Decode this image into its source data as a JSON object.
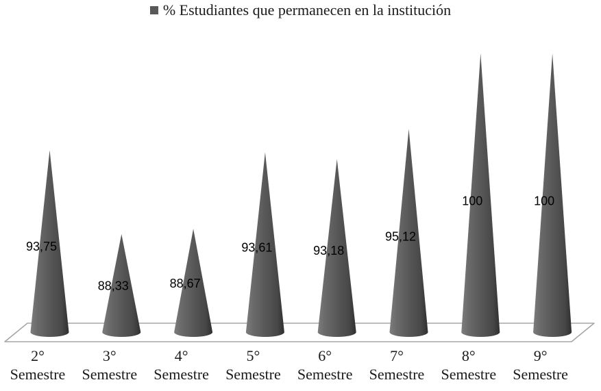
{
  "legend": {
    "marker_color": "#595959",
    "label": "% Estudiantes que permanecen en la institución"
  },
  "chart_data": {
    "type": "bar",
    "style": "3d-cone",
    "title": "",
    "xlabel": "",
    "ylabel": "",
    "legend_entries": [
      "% Estudiantes que permanecen en la institución"
    ],
    "legend_position": "top-center",
    "categories": [
      "2° Semestre",
      "3° Semestre",
      "4° Semestre",
      "5° Semestre",
      "6° Semestre",
      "7° Semestre",
      "8° Semestre",
      "9° Semestre"
    ],
    "values": [
      93.75,
      88.33,
      88.67,
      93.61,
      93.18,
      95.12,
      100,
      100
    ],
    "value_labels": [
      "93,75",
      "88,33",
      "88,67",
      "93,61",
      "93,18",
      "95,12",
      "100",
      "100"
    ],
    "ylim": [
      82,
      100
    ],
    "grid": false,
    "axis_visible": false,
    "colors": {
      "series": "#595959",
      "floor_stroke": "#a6a6a6",
      "label_text": "#000000"
    }
  }
}
